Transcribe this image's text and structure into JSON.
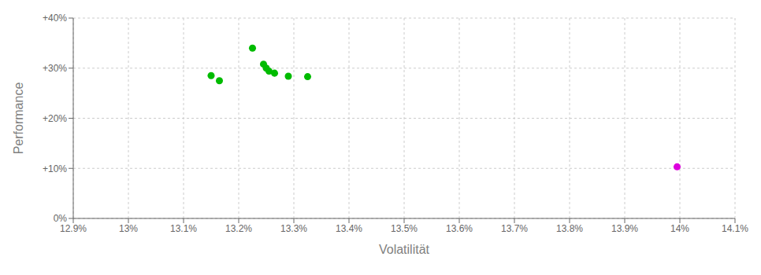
{
  "chart_data": {
    "type": "scatter",
    "xlabel": "Volatilität",
    "ylabel": "Performance",
    "xlim": [
      12.9,
      14.1
    ],
    "ylim": [
      0,
      40
    ],
    "xticks": [
      {
        "value": 12.9,
        "label": "12.9%"
      },
      {
        "value": 13.0,
        "label": "13%"
      },
      {
        "value": 13.1,
        "label": "13.1%"
      },
      {
        "value": 13.2,
        "label": "13.2%"
      },
      {
        "value": 13.3,
        "label": "13.3%"
      },
      {
        "value": 13.4,
        "label": "13.4%"
      },
      {
        "value": 13.5,
        "label": "13.5%"
      },
      {
        "value": 13.6,
        "label": "13.6%"
      },
      {
        "value": 13.7,
        "label": "13.7%"
      },
      {
        "value": 13.8,
        "label": "13.8%"
      },
      {
        "value": 13.9,
        "label": "13.9%"
      },
      {
        "value": 14.0,
        "label": "14%"
      },
      {
        "value": 14.1,
        "label": "14.1%"
      }
    ],
    "yticks": [
      {
        "value": 0,
        "label": "0%"
      },
      {
        "value": 10,
        "label": "+10%"
      },
      {
        "value": 20,
        "label": "+20%"
      },
      {
        "value": 30,
        "label": "+30%"
      },
      {
        "value": 40,
        "label": "+40%"
      }
    ],
    "grid": true,
    "series": [
      {
        "color": "#00bb00",
        "x": [
          13.15,
          13.165,
          13.225,
          13.245,
          13.25,
          13.255,
          13.265,
          13.29,
          13.325
        ],
        "values": [
          28.5,
          27.5,
          34.0,
          30.8,
          30.0,
          29.4,
          29.0,
          28.4,
          28.3
        ]
      },
      {
        "color": "#dd00dd",
        "x": [
          13.995
        ],
        "values": [
          10.3
        ]
      }
    ]
  }
}
